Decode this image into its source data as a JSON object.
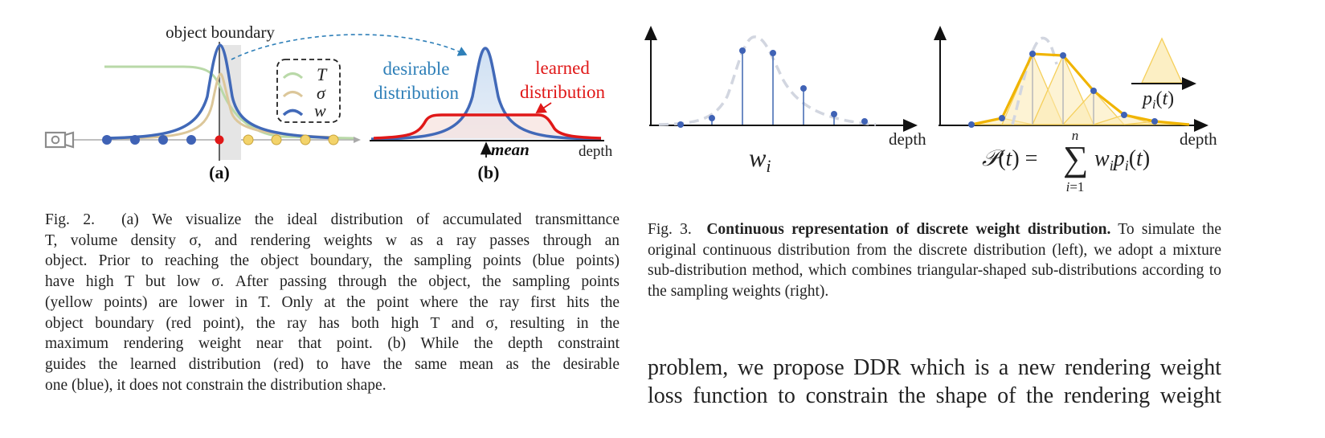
{
  "fig2": {
    "object_boundary_label": "object boundary",
    "legend": [
      "T",
      "σ",
      "w"
    ],
    "desirable_label_1": "desirable",
    "desirable_label_2": "distribution",
    "learned_label_1": "learned",
    "learned_label_2": "distribution",
    "mean_label": "mean",
    "depth_label": "depth",
    "panel_a": "(a)",
    "panel_b": "(b)",
    "caption_prefix": "Fig. 2.",
    "caption_lines": [
      "(a) We visualize the ideal distribution of accumulated transmittance",
      "T, volume density σ, and rendering weights w as a ray passes through an",
      "object. Prior to reaching the object boundary, the sampling points (blue points)",
      "have high T but low σ. After passing through the object, the sampling points",
      "(yellow points) are lower in T. Only at the point where the ray first hits the",
      "object boundary (red point), the ray has both high T and σ, resulting in the",
      "maximum rendering weight near that point. (b) While the depth constraint",
      "guides the learned distribution (red) to have the same mean as the desirable",
      "one (blue), it does not constrain the distribution shape."
    ]
  },
  "fig3": {
    "left_depth_label": "depth",
    "right_depth_label": "depth",
    "wi_label": "w_i",
    "pi_label": "p_i(t)",
    "formula": "𝒫(t) = Σ w_i p_i(t)",
    "formula_upper": "n",
    "formula_lower": "i=1",
    "caption_prefix": "Fig. 3.",
    "caption_bold": "Continuous representation of discrete weight distribution.",
    "caption_rest": "To simulate the original continuous distribution from the discrete distribution (left), we adopt a mixture sub-distribution method, which combines triangular-shaped sub-distributions according to the sampling weights (right)."
  },
  "body": {
    "line1": "problem, we propose DDR which is a new rendering weight",
    "line2": "loss function to constrain the shape of the rendering weight"
  },
  "colors": {
    "blue_curve": "#4169b8",
    "blue_point": "#3f62b5",
    "yellow_point": "#f3d36a",
    "red": "#e01818",
    "green_curve": "#b9d9a8",
    "tan_curve": "#dcc79a",
    "desirable_text": "#2e7fb8",
    "learned_text": "#e01818",
    "gold": "#f0b400"
  }
}
